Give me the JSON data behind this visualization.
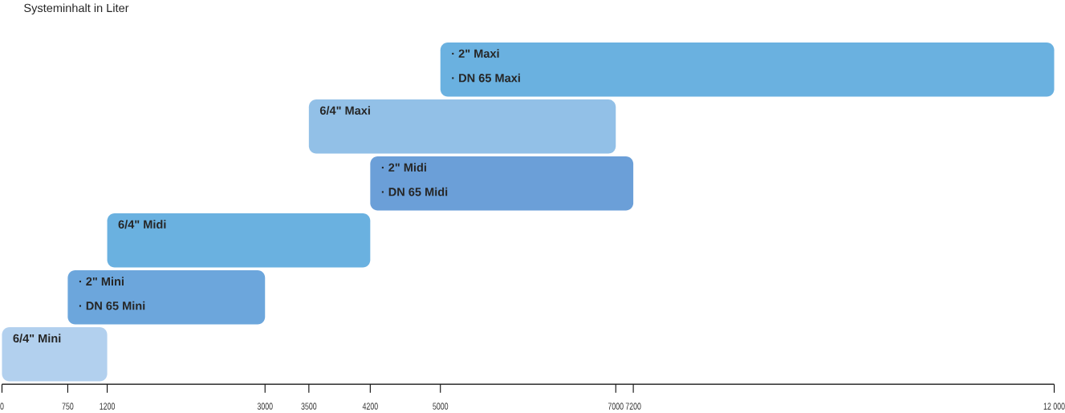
{
  "chart_data": {
    "type": "bar",
    "orientation": "horizontal",
    "title": "Systeminhalt in Liter",
    "categories": [
      "· 2\" Maxi",
      "6/4\" Maxi",
      "· 2\" Midi",
      "6/4\" Midi",
      "· 2\" Mini",
      "6/4\" Mini"
    ],
    "base": [
      5000,
      3500,
      4200,
      1200,
      750,
      0
    ],
    "values": [
      7000,
      3500,
      3000,
      3000,
      2250,
      1200
    ],
    "colors": [
      "#5aa8dd",
      "#86b9e4",
      "#5b95d4",
      "#5aa8dd",
      "#5c9cd8",
      "#aacbec"
    ],
    "xlim": [
      0,
      12000
    ],
    "xticks": [
      0,
      750,
      1200,
      3000,
      3500,
      4200,
      5000,
      7000,
      7200,
      {
        "value": 12000,
        "label": "12 000"
      }
    ],
    "annotations": [
      "· DN 65 Maxi",
      "· DN 65 Midi",
      "· DN 65 Mini"
    ],
    "grid": false
  }
}
